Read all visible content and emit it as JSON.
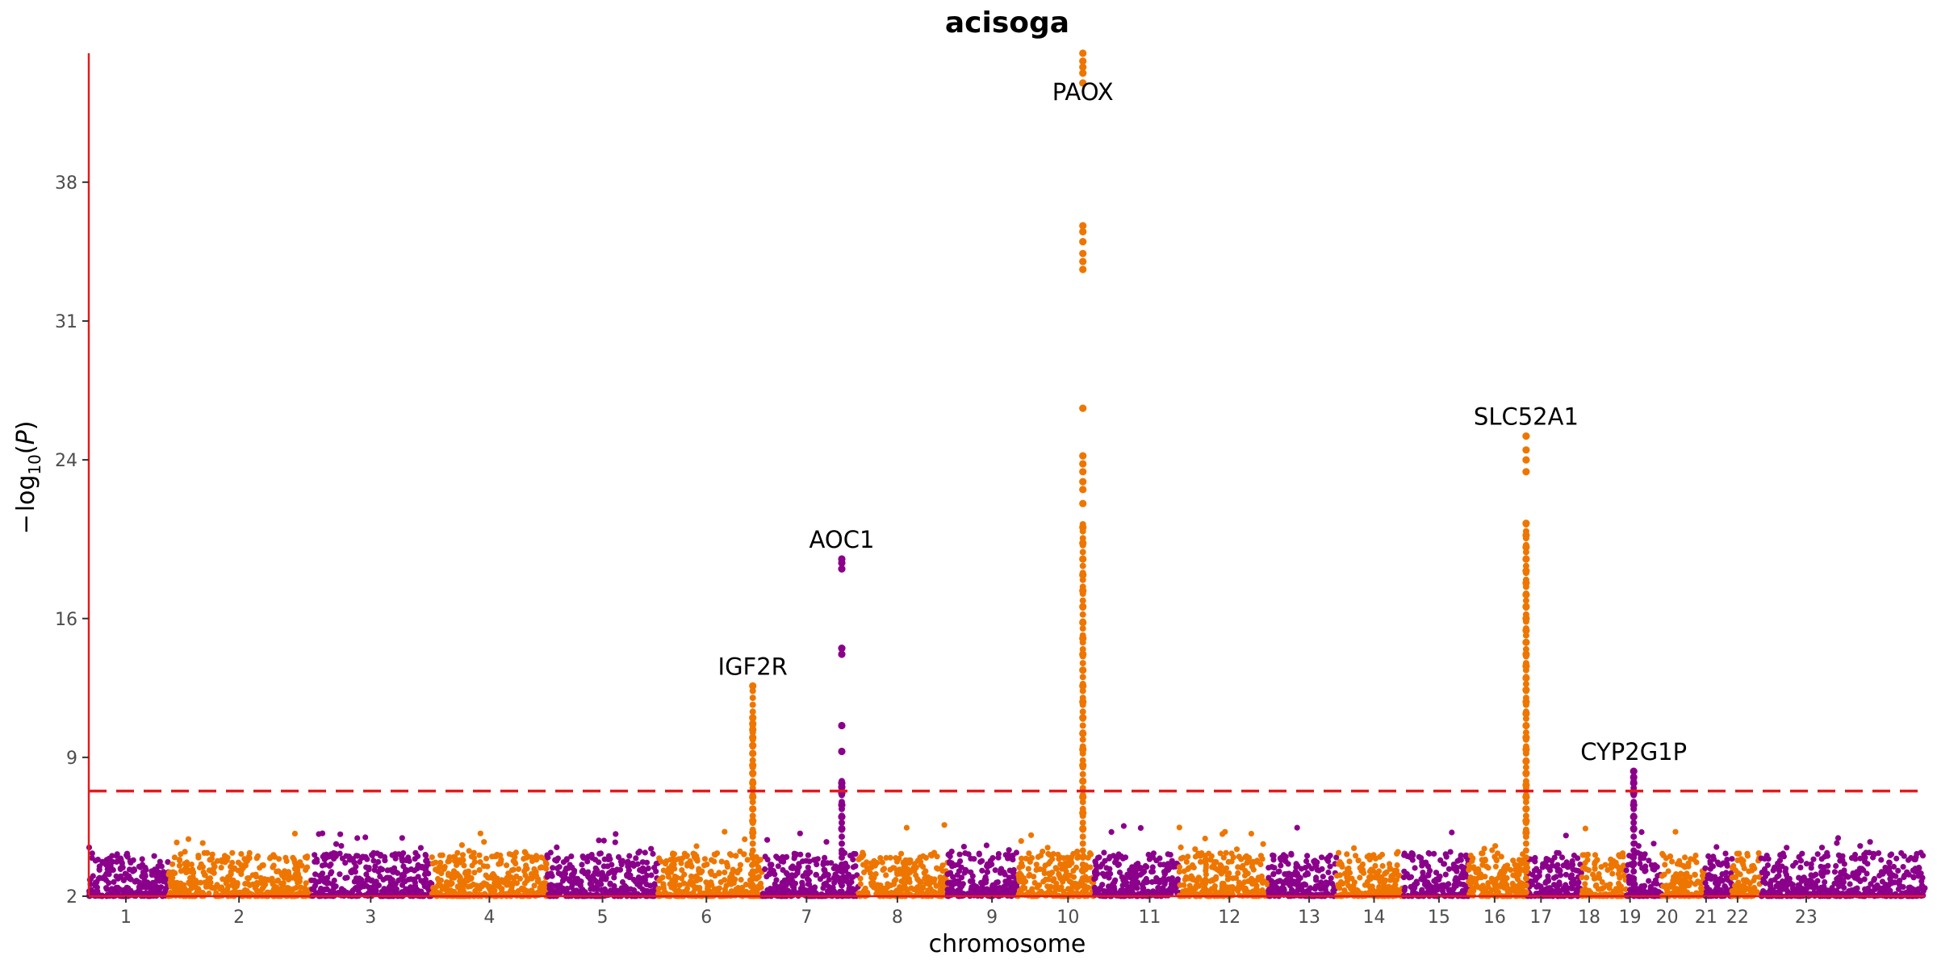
{
  "chart_data": {
    "type": "scatter",
    "subtype": "manhattan",
    "title": "acisoga",
    "xlabel": "chromosome",
    "ylabel": "−log10(P)",
    "ylim": [
      2,
      44.5
    ],
    "y_ticks": [
      2,
      9,
      16,
      24,
      31,
      38
    ],
    "threshold": 7.3,
    "threshold_color": "#e41a1c",
    "axis_color": "#e41a1c",
    "colors": {
      "odd": "#8b008b",
      "even": "#ee7600"
    },
    "chromosomes": [
      {
        "label": "1",
        "span": [
          0.0,
          4.3
        ],
        "tick": 2.0,
        "color": "#8b008b"
      },
      {
        "label": "2",
        "span": [
          4.3,
          12.0
        ],
        "tick": 8.1,
        "color": "#ee7600"
      },
      {
        "label": "3",
        "span": [
          12.0,
          18.5
        ],
        "tick": 15.2,
        "color": "#8b008b"
      },
      {
        "label": "4",
        "span": [
          18.5,
          24.7
        ],
        "tick": 21.6,
        "color": "#ee7600"
      },
      {
        "label": "5",
        "span": [
          24.7,
          30.7
        ],
        "tick": 27.7,
        "color": "#8b008b"
      },
      {
        "label": "6",
        "span": [
          30.7,
          36.3
        ],
        "tick": 33.3,
        "color": "#ee7600"
      },
      {
        "label": "7",
        "span": [
          36.3,
          41.5
        ],
        "tick": 38.7,
        "color": "#8b008b"
      },
      {
        "label": "8",
        "span": [
          41.5,
          46.3
        ],
        "tick": 43.6,
        "color": "#ee7600"
      },
      {
        "label": "9",
        "span": [
          46.3,
          50.1
        ],
        "tick": 48.7,
        "color": "#8b008b"
      },
      {
        "label": "10",
        "span": [
          50.1,
          54.2
        ],
        "tick": 52.8,
        "color": "#ee7600"
      },
      {
        "label": "11",
        "span": [
          54.2,
          58.8
        ],
        "tick": 57.2,
        "color": "#8b008b"
      },
      {
        "label": "12",
        "span": [
          58.8,
          63.6
        ],
        "tick": 61.5,
        "color": "#ee7600"
      },
      {
        "label": "13",
        "span": [
          63.6,
          67.3
        ],
        "tick": 65.8,
        "color": "#8b008b"
      },
      {
        "label": "14",
        "span": [
          67.3,
          70.9
        ],
        "tick": 69.3,
        "color": "#ee7600"
      },
      {
        "label": "15",
        "span": [
          70.9,
          74.4
        ],
        "tick": 72.8,
        "color": "#8b008b"
      },
      {
        "label": "16",
        "span": [
          74.4,
          77.6
        ],
        "tick": 75.8,
        "color": "#ee7600"
      },
      {
        "label": "17",
        "span": [
          77.6,
          80.5
        ],
        "tick": 78.3,
        "color": "#8b008b"
      },
      {
        "label": "18",
        "span": [
          80.5,
          82.9
        ],
        "tick": 80.9,
        "color": "#ee7600"
      },
      {
        "label": "19",
        "span": [
          82.9,
          84.8
        ],
        "tick": 83.1,
        "color": "#8b008b"
      },
      {
        "label": "20",
        "span": [
          84.8,
          87.1
        ],
        "tick": 85.1,
        "color": "#ee7600"
      },
      {
        "label": "21",
        "span": [
          87.1,
          88.6
        ],
        "tick": 87.2,
        "color": "#8b008b"
      },
      {
        "label": "22",
        "span": [
          88.6,
          90.1
        ],
        "tick": 88.9,
        "color": "#ee7600"
      },
      {
        "label": "23",
        "span": [
          90.1,
          99.0
        ],
        "tick": 92.6,
        "color": "#8b008b"
      }
    ],
    "peaks": [
      {
        "gene": "IGF2R",
        "chromosome": "6",
        "x": 35.8,
        "max": 12.6,
        "hits": [
          12.6,
          11.0,
          10.7,
          10.4,
          10.0,
          9.6,
          9.2,
          8.6,
          8.2,
          7.7,
          7.0,
          6.4,
          5.8,
          5.2
        ]
      },
      {
        "gene": "AOC1",
        "chromosome": "7",
        "x": 40.6,
        "max": 19.0,
        "hits": [
          19.0,
          18.8,
          18.5,
          14.5,
          14.2,
          10.6,
          9.3,
          7.7,
          7.5,
          7.2,
          6.6,
          6.0,
          5.4
        ]
      },
      {
        "gene": "PAOX",
        "chromosome": "10",
        "x": 53.6,
        "max": 44.5,
        "hits": [
          44.5,
          44.1,
          43.8,
          43.5,
          43.0,
          35.8,
          35.5,
          35.0,
          34.4,
          34.0,
          33.6,
          26.6,
          24.2,
          23.8,
          23.4,
          22.9,
          22.5,
          21.8,
          20.6,
          19.8,
          19.0,
          18.2,
          17.4,
          16.6,
          15.8,
          15.0,
          14.2,
          13.4,
          12.6,
          11.8,
          11.0,
          10.2,
          9.4,
          8.6,
          7.8,
          7.0,
          6.2,
          5.4
        ]
      },
      {
        "gene": "SLC52A1",
        "chromosome": "16",
        "x": 77.5,
        "max": 25.2,
        "hits": [
          25.2,
          24.5,
          24.0,
          23.4,
          20.8,
          20.2,
          19.6,
          19.0,
          18.4,
          17.8,
          17.2,
          16.6,
          16.0,
          15.4,
          14.8,
          14.2,
          13.6,
          13.0,
          12.4,
          11.8,
          11.2,
          10.6,
          10.0,
          9.4,
          8.8,
          8.2,
          7.6,
          7.0,
          6.4,
          5.8,
          5.2
        ]
      },
      {
        "gene": "CYP2G1P",
        "chromosome": "19",
        "x": 83.3,
        "max": 8.3,
        "hits": [
          8.3,
          8.0,
          7.7,
          7.2,
          6.6,
          6.0,
          5.4
        ]
      }
    ]
  }
}
